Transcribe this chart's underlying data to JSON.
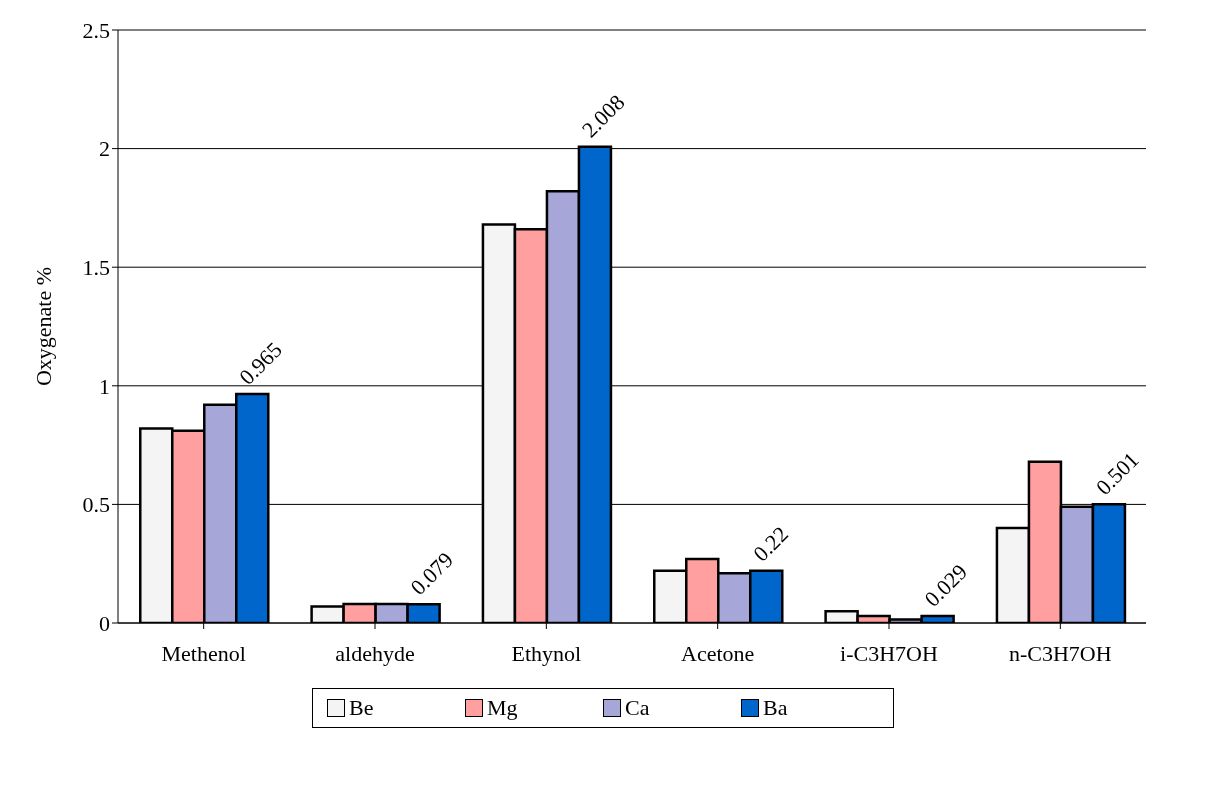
{
  "chart_data": {
    "type": "bar",
    "ylabel": "Oxygenate %",
    "categories": [
      "Methenol",
      "aldehyde",
      "Ethynol",
      "Acetone",
      "i-C3H7OH",
      "n-C3H7OH"
    ],
    "series": [
      {
        "name": "Be",
        "color": "#f4f4f4",
        "values": [
          0.82,
          0.07,
          1.68,
          0.22,
          0.05,
          0.4
        ]
      },
      {
        "name": "Mg",
        "color": "#ff9f9f",
        "values": [
          0.81,
          0.08,
          1.66,
          0.27,
          0.03,
          0.68
        ]
      },
      {
        "name": "Ca",
        "color": "#a6a6d8",
        "values": [
          0.92,
          0.08,
          1.82,
          0.21,
          0.015,
          0.49
        ]
      },
      {
        "name": "Ba",
        "color": "#0066cc",
        "values": [
          0.965,
          0.079,
          2.008,
          0.22,
          0.029,
          0.501
        ],
        "value_labels": [
          "0.965",
          "0.079",
          "2.008",
          "0.22",
          "0.029",
          "0.501"
        ]
      }
    ],
    "ylim": [
      0,
      2.5
    ],
    "yticks": [
      0,
      0.5,
      1,
      1.5,
      2,
      2.5
    ],
    "grid": "y",
    "legend": "bottom"
  }
}
